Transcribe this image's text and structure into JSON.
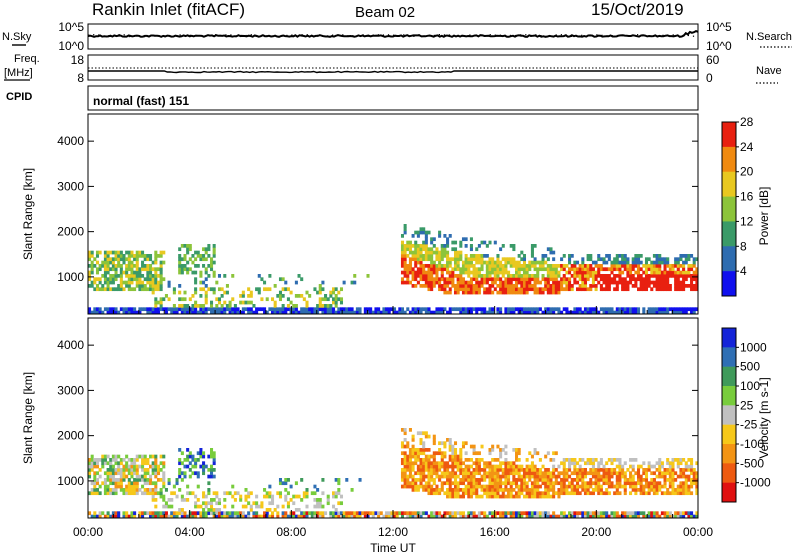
{
  "header": {
    "station": "Rankin Inlet (fitACF)",
    "beam": "Beam 02",
    "date": "15/Oct/2019"
  },
  "noise_panel": {
    "left_label": "N.Sky",
    "right_label": "N.Search",
    "left_ticks": [
      "10^5",
      "10^0"
    ],
    "right_ticks": [
      "10^5",
      "10^0"
    ]
  },
  "freq_panel": {
    "left_label_1": "Freq.",
    "left_label_2": "[MHz]",
    "right_label": "Nave",
    "left_ticks": [
      "18",
      "8"
    ],
    "right_ticks": [
      "60",
      "0"
    ]
  },
  "cpid_panel": {
    "label": "CPID",
    "value": "normal (fast) 151"
  },
  "chart_data": [
    {
      "type": "heatmap",
      "name": "power",
      "ylabel": "Slant Range [km]",
      "yticks": [
        1000,
        2000,
        3000,
        4000
      ],
      "ylim": [
        180,
        4600
      ],
      "colorbar_label": "Power [dB]",
      "colorbar_ticks": [
        "4",
        "8",
        "12",
        "16",
        "20",
        "24",
        "28"
      ],
      "colorbar_colors": [
        "#1010ee",
        "#2e6cb0",
        "#3a9a68",
        "#8cc43a",
        "#e8c820",
        "#f08a10",
        "#e82010"
      ]
    },
    {
      "type": "heatmap",
      "name": "velocity",
      "ylabel": "Slant Range [km]",
      "yticks": [
        1000,
        2000,
        3000,
        4000
      ],
      "ylim": [
        180,
        4600
      ],
      "colorbar_label": "Velocity [m s-1]",
      "colorbar_ticks": [
        "1000",
        "500",
        "100",
        "25",
        "-25",
        "-100",
        "-500",
        "-1000"
      ],
      "colorbar_colors": [
        "#1424d8",
        "#2f6fb4",
        "#3f9a5a",
        "#78cc3c",
        "#c0c0c0",
        "#f6c81a",
        "#f39414",
        "#ee5a10",
        "#e01010"
      ]
    }
  ],
  "time_axis": {
    "ticks": [
      "00:00",
      "04:00",
      "08:00",
      "12:00",
      "16:00",
      "20:00",
      "00:00"
    ],
    "label": "Time UT"
  }
}
